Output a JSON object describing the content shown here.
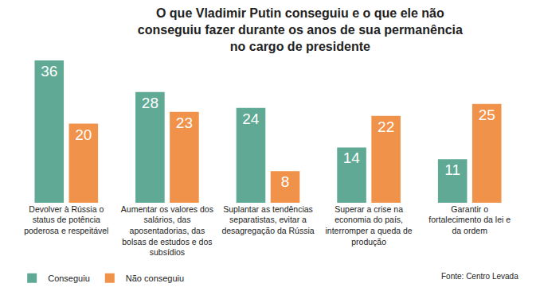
{
  "chart_data": {
    "type": "bar",
    "title": "O que Vladimir Putin conseguiu e o que ele não conseguiu fazer durante os anos de sua permanência no cargo de presidente",
    "categories": [
      "Devolver à Rússia o status de potência poderosa e respeitável",
      "Aumentar os valores dos salários, das aposentadorias, das bolsas de estudos e dos subsídios",
      "Suplantar as tendências separatistas, evitar a desagregação da Rússia",
      "Superar a crise na economia do país, interromper a queda de produção",
      "Garantir o fortalecimento da lei e da ordem"
    ],
    "series": [
      {
        "name": "Conseguiu",
        "color": "#5fa995",
        "values": [
          36,
          28,
          24,
          14,
          11
        ]
      },
      {
        "name": "Não conseguiu",
        "color": "#f0924a",
        "values": [
          20,
          23,
          8,
          22,
          25
        ]
      }
    ],
    "ylim": [
      0,
      36
    ],
    "grid": false,
    "tick_labels": "x",
    "data_labels": true,
    "legend": "bottom left",
    "source": "Fonte: Centro Levada"
  }
}
